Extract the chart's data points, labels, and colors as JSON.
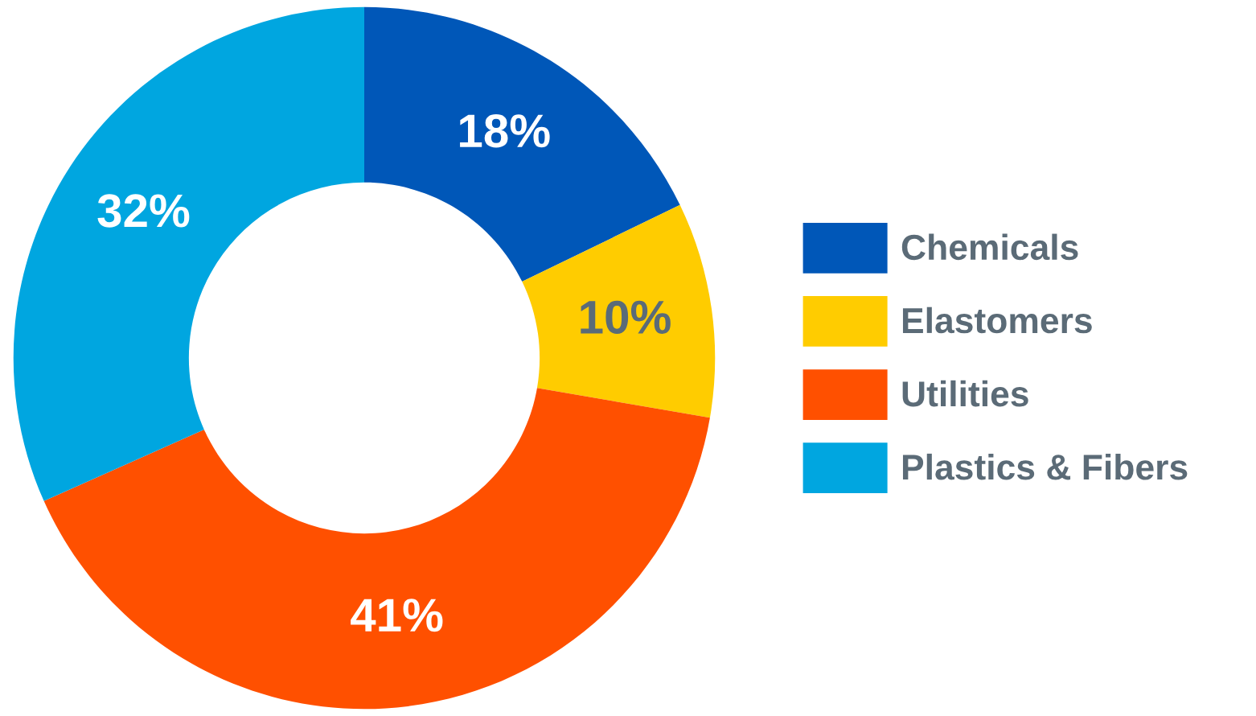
{
  "chart_data": {
    "type": "donut",
    "categories": [
      "Chemicals",
      "Elastomers",
      "Utilities",
      "Plastics & Fibers"
    ],
    "values": [
      18,
      10,
      41,
      32
    ],
    "colors": [
      "#0057b8",
      "#ffcc00",
      "#ff5000",
      "#00a6e0"
    ],
    "value_labels": [
      "18%",
      "10%",
      "41%",
      "32%"
    ],
    "legend": "right"
  }
}
